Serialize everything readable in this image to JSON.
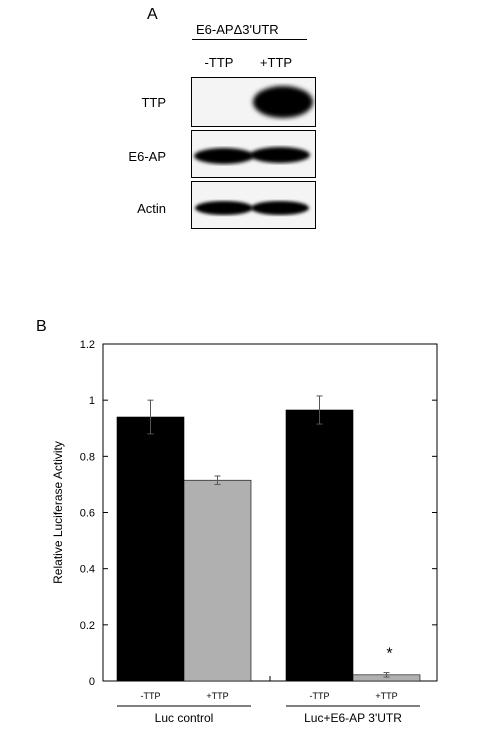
{
  "panel_a": {
    "letter": "A",
    "header": "E6-APΔ3'UTR",
    "lanes": [
      "-TTP",
      "+TTP"
    ],
    "rows": [
      {
        "label": "TTP"
      },
      {
        "label": "E6-AP"
      },
      {
        "label": "Actin"
      }
    ]
  },
  "panel_b": {
    "letter": "B"
  },
  "chart_data": {
    "type": "bar",
    "ylabel": "Relative Luciferase Activity",
    "xlabel": "",
    "title": "",
    "ylim": [
      0,
      1.2
    ],
    "yticks": [
      "0",
      "0.2",
      "0.4",
      "0.6",
      "0.8",
      "1",
      "1.2"
    ],
    "groups": [
      {
        "name": "Luc control",
        "bars": [
          {
            "label": "-TTP",
            "value": 0.94,
            "error": 0.06,
            "color": "#000000",
            "annotation": ""
          },
          {
            "label": "+TTP",
            "value": 0.715,
            "error": 0.015,
            "color": "#b0b0b0",
            "annotation": ""
          }
        ]
      },
      {
        "name": "Luc+E6-AP 3'UTR",
        "bars": [
          {
            "label": "-TTP",
            "value": 0.965,
            "error": 0.05,
            "color": "#000000",
            "annotation": ""
          },
          {
            "label": "+TTP",
            "value": 0.022,
            "error": 0.008,
            "color": "#b0b0b0",
            "annotation": "*"
          }
        ]
      }
    ]
  }
}
